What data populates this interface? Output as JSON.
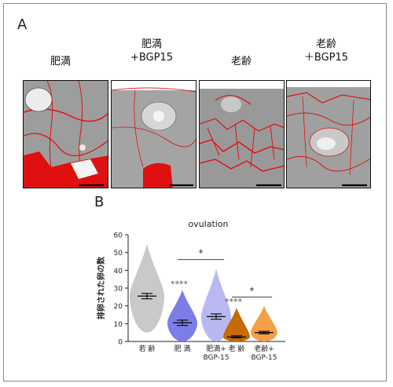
{
  "panel_a_label": "A",
  "panel_b_label": "B",
  "micrographs": [
    {
      "label_line1": "肥満",
      "label_line2": ""
    },
    {
      "label_line1": "肥満",
      "label_line2": "+BGP15"
    },
    {
      "label_line1": "老齢",
      "label_line2": ""
    },
    {
      "label_line1": "老齢",
      "label_line2": "＋BGP15"
    }
  ],
  "colors": {
    "stain": "#e01010",
    "tissue": "#9d9d9d",
    "frame": "#8a8a8a"
  },
  "chart_data": {
    "type": "violin",
    "title": "ovulation",
    "ylabel": "排卵された卵の数",
    "xlabel": "",
    "ylim": [
      0,
      60
    ],
    "yticks": [
      0,
      10,
      20,
      30,
      40,
      50,
      60
    ],
    "grid": false,
    "categories": [
      {
        "line1": "若 齢",
        "line2": ""
      },
      {
        "line1": "肥 満",
        "line2": ""
      },
      {
        "line1": "肥満+",
        "line2": "BGP-15"
      },
      {
        "line1": "老 齢",
        "line2": ""
      },
      {
        "line1": "老齢+",
        "line2": "BGP-15"
      }
    ],
    "series": [
      {
        "mean": 25.5,
        "sem_low": 24,
        "sem_high": 27,
        "min": 5,
        "max": 55,
        "color": "#c9c9c9",
        "significance": ""
      },
      {
        "mean": 10.5,
        "sem_low": 9,
        "sem_high": 12,
        "min": 0,
        "max": 29,
        "color": "#7d7de8",
        "significance": "****"
      },
      {
        "mean": 14,
        "sem_low": 12.5,
        "sem_high": 15.5,
        "min": 0,
        "max": 41,
        "color": "#b9b9f2",
        "significance": ""
      },
      {
        "mean": 2.5,
        "sem_low": 2,
        "sem_high": 3.2,
        "min": 0,
        "max": 19,
        "color": "#c56a05",
        "significance": "****"
      },
      {
        "mean": 5,
        "sem_low": 4.3,
        "sem_high": 5.7,
        "min": 0,
        "max": 20,
        "color": "#f5a045",
        "significance": ""
      }
    ],
    "comparisons": [
      {
        "from": 1,
        "to": 2,
        "y": 46,
        "label": "*"
      },
      {
        "from": 3,
        "to": 4,
        "y": 25,
        "label": "*"
      }
    ]
  }
}
